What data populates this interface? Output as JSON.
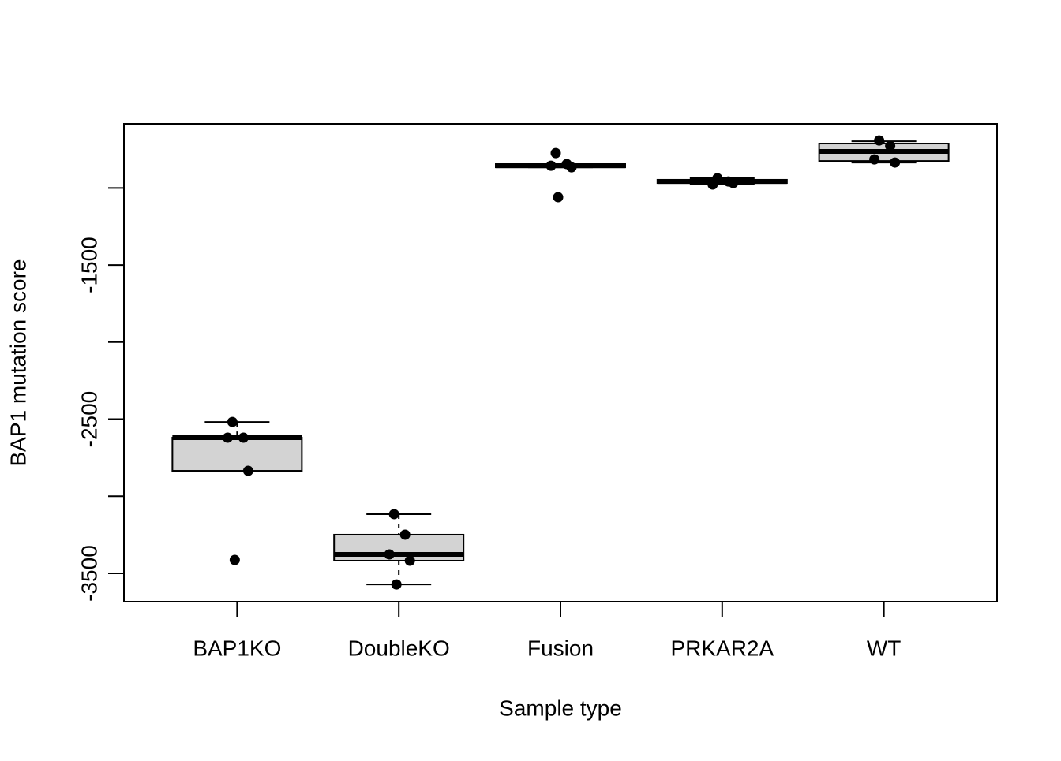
{
  "chart_data": {
    "type": "box",
    "x_label": "Sample type",
    "y_label": "BAP1 mutation score",
    "categories": [
      "BAP1KO",
      "DoubleKO",
      "Fusion",
      "PRKAR2A",
      "WT"
    ],
    "whisker_low": [
      -2835,
      -3572,
      -866,
      -978,
      -835
    ],
    "q1": [
      -2835,
      -3418,
      -866,
      -968,
      -825
    ],
    "median": [
      -2620,
      -3377,
      -856,
      -958,
      -763
    ],
    "q3": [
      -2620,
      -3249,
      -845,
      -947,
      -712
    ],
    "whisker_high": [
      -2518,
      -3116,
      -845,
      -937,
      -697
    ],
    "points": [
      [
        -2518,
        -2620,
        -2620,
        -2835,
        -3413
      ],
      [
        -3116,
        -3249,
        -3377,
        -3418,
        -3572
      ],
      [
        -774,
        -845,
        -856,
        -866,
        -1060
      ],
      [
        -937,
        -958,
        -978,
        -968
      ],
      [
        -692,
        -728,
        -815,
        -835
      ]
    ],
    "box_color": "#d3d3d3",
    "ylim": [
      -3684,
      -584
    ],
    "yticks": [
      -3500,
      {
        "value": -3000,
        "label": null
      },
      -2500,
      {
        "value": -2000,
        "label": null
      },
      -1500,
      {
        "value": -1000,
        "label": null
      }
    ]
  }
}
